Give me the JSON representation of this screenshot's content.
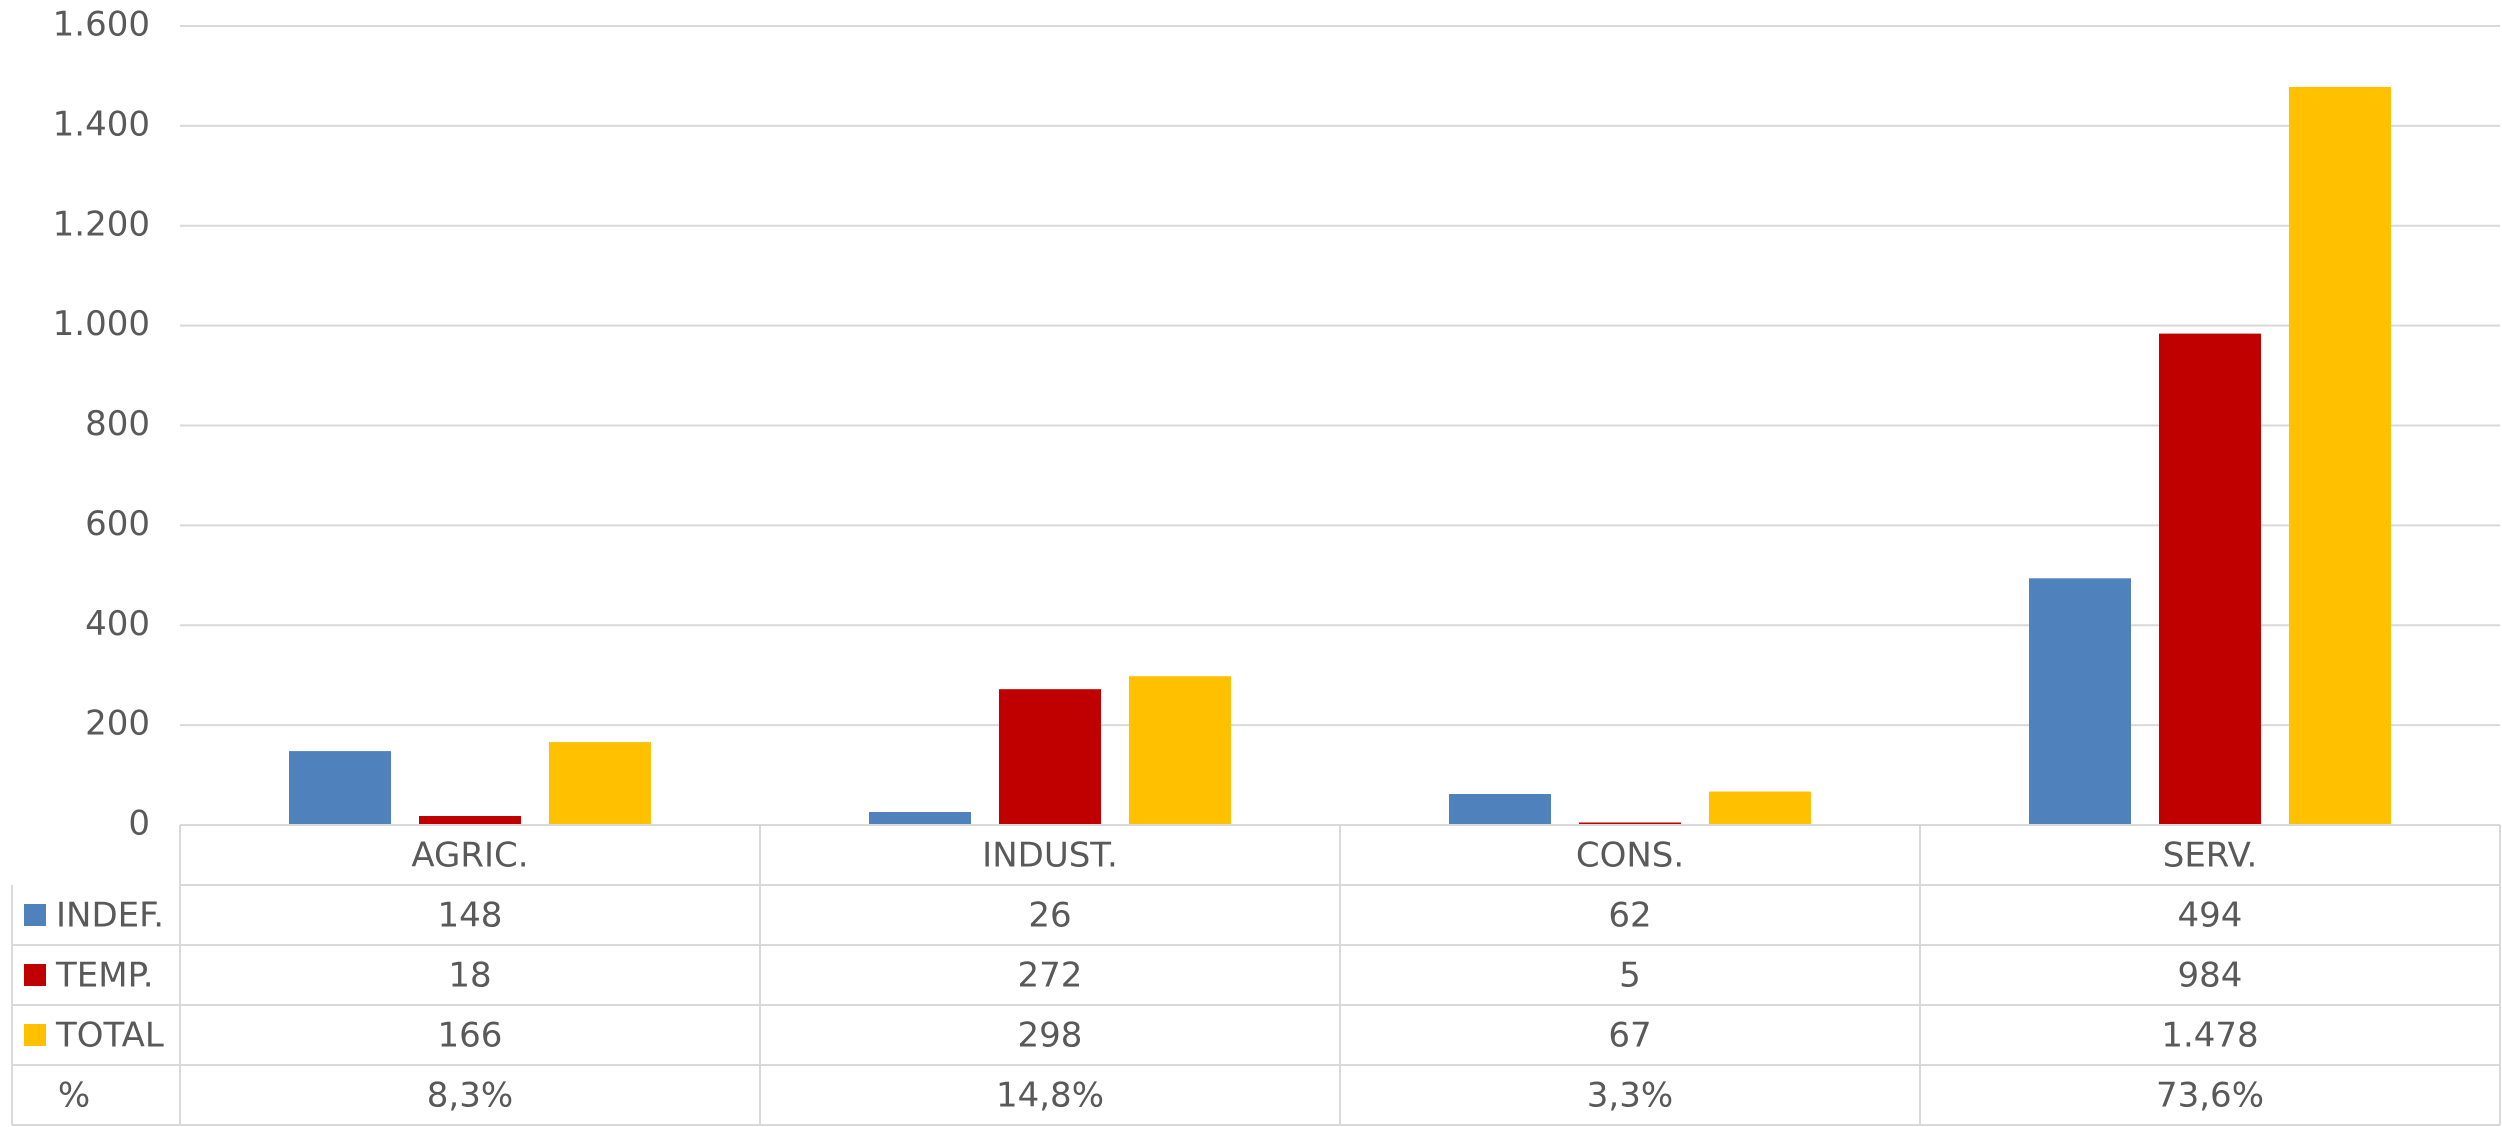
{
  "chart_data": {
    "type": "bar",
    "categories": [
      "AGRIC.",
      "INDUST.",
      "CONS.",
      "SERV."
    ],
    "series": [
      {
        "name": "INDEF.",
        "color": "#4f81bd",
        "values": [
          148,
          26,
          62,
          494
        ]
      },
      {
        "name": "TEMP.",
        "color": "#c00000",
        "values": [
          18,
          272,
          5,
          984
        ]
      },
      {
        "name": "TOTAL",
        "color": "#ffc000",
        "values": [
          166,
          298,
          67,
          1478
        ],
        "value_labels": [
          "166",
          "298",
          "67",
          "1.478"
        ]
      }
    ],
    "percent_row": {
      "name": "%",
      "values": [
        8.3,
        14.8,
        3.3,
        73.6
      ],
      "value_labels": [
        "8,3%",
        "14,8%",
        "3,3%",
        "73,6%"
      ]
    },
    "ylim": [
      0,
      1600
    ],
    "yticks": [
      0,
      200,
      400,
      600,
      800,
      {
        "value": 1000,
        "label": "1.000"
      },
      {
        "value": 1200,
        "label": "1.200"
      },
      {
        "value": 1400,
        "label": "1.400"
      },
      {
        "value": 1600,
        "label": "1.600"
      }
    ],
    "grid": true
  }
}
